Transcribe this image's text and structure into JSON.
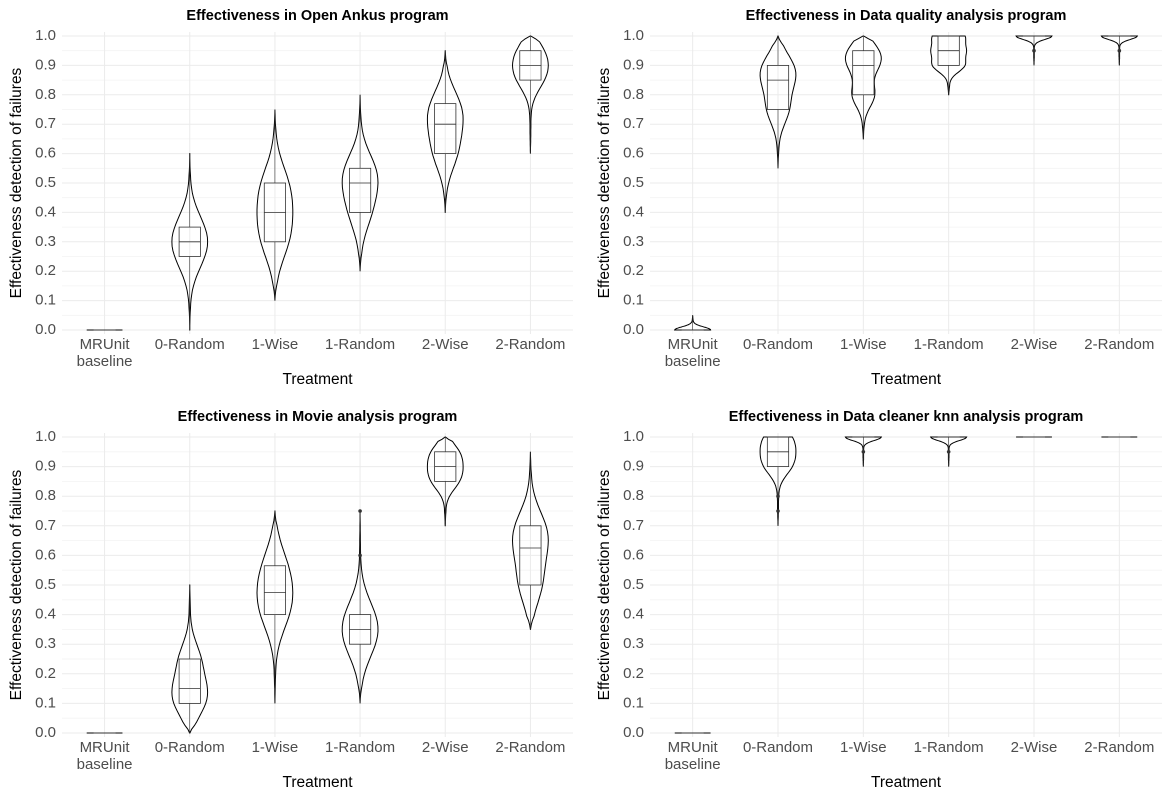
{
  "chart_data": [
    {
      "type": "violin",
      "title": "Effectiveness in Open Ankus program",
      "x_label": "Treatment",
      "y_label": "Effectiveness detection of failures",
      "categories": [
        "MRUnit baseline",
        "0-Random",
        "1-Wise",
        "1-Random",
        "2-Wise",
        "2-Random"
      ],
      "stats": [
        {
          "min": 0,
          "q1": 0,
          "median": 0,
          "q3": 0,
          "max": 0
        },
        {
          "min": 0,
          "q1": 0.25,
          "median": 0.3,
          "q3": 0.35,
          "max": 0.6
        },
        {
          "min": 0.1,
          "q1": 0.3,
          "median": 0.4,
          "q3": 0.5,
          "max": 0.75
        },
        {
          "min": 0.2,
          "q1": 0.4,
          "median": 0.5,
          "q3": 0.55,
          "max": 0.8
        },
        {
          "min": 0.4,
          "q1": 0.6,
          "median": 0.7,
          "q3": 0.77,
          "max": 0.95
        },
        {
          "min": 0.6,
          "q1": 0.85,
          "median": 0.9,
          "q3": 0.95,
          "max": 1.0
        }
      ],
      "ylim": [
        0,
        1
      ],
      "yticks": [
        {
          "value": 0,
          "label": "0.0"
        },
        0.1,
        0.2,
        0.3,
        0.4,
        0.5,
        0.6,
        0.7,
        0.8,
        0.9,
        {
          "value": 1,
          "label": "1.0"
        }
      ],
      "grid": true
    },
    {
      "type": "violin",
      "title": "Effectiveness in Data quality analysis program",
      "x_label": "Treatment",
      "y_label": "Effectiveness detection of failures",
      "categories": [
        "MRUnit baseline",
        "0-Random",
        "1-Wise",
        "1-Random",
        "2-Wise",
        "2-Random"
      ],
      "stats": [
        {
          "min": 0,
          "q1": 0,
          "median": 0,
          "q3": 0,
          "max": 0.05
        },
        {
          "min": 0.55,
          "q1": 0.75,
          "median": 0.85,
          "q3": 0.9,
          "max": 1.0
        },
        {
          "min": 0.65,
          "q1": 0.8,
          "median": 0.9,
          "q3": 0.95,
          "max": 1.0
        },
        {
          "min": 0.8,
          "q1": 0.9,
          "median": 0.95,
          "q3": 1.0,
          "max": 1.0
        },
        {
          "min": 0.9,
          "q1": 1.0,
          "median": 1.0,
          "q3": 1.0,
          "max": 1.0,
          "outliers": [
            0.95
          ]
        },
        {
          "min": 0.9,
          "q1": 1.0,
          "median": 1.0,
          "q3": 1.0,
          "max": 1.0,
          "outliers": [
            0.95
          ]
        }
      ],
      "ylim": [
        0,
        1
      ],
      "yticks": [
        {
          "value": 0,
          "label": "0.0"
        },
        0.1,
        0.2,
        0.3,
        0.4,
        0.5,
        0.6,
        0.7,
        0.8,
        0.9,
        {
          "value": 1,
          "label": "1.0"
        }
      ],
      "grid": true
    },
    {
      "type": "violin",
      "title": "Effectiveness in Movie analysis program",
      "x_label": "Treatment",
      "y_label": "Effectiveness detection of failures",
      "categories": [
        "MRUnit baseline",
        "0-Random",
        "1-Wise",
        "1-Random",
        "2-Wise",
        "2-Random"
      ],
      "stats": [
        {
          "min": 0,
          "q1": 0,
          "median": 0,
          "q3": 0,
          "max": 0
        },
        {
          "min": 0,
          "q1": 0.1,
          "median": 0.15,
          "q3": 0.25,
          "max": 0.5
        },
        {
          "min": 0.1,
          "q1": 0.4,
          "median": 0.475,
          "q3": 0.565,
          "max": 0.75
        },
        {
          "min": 0.1,
          "q1": 0.3,
          "median": 0.35,
          "q3": 0.4,
          "max": 0.75,
          "outliers": [
            0.6,
            0.75
          ]
        },
        {
          "min": 0.7,
          "q1": 0.85,
          "median": 0.9,
          "q3": 0.95,
          "max": 1.0
        },
        {
          "min": 0.35,
          "q1": 0.5,
          "median": 0.625,
          "q3": 0.7,
          "max": 0.95
        }
      ],
      "ylim": [
        0,
        1
      ],
      "yticks": [
        {
          "value": 0,
          "label": "0.0"
        },
        0.1,
        0.2,
        0.3,
        0.4,
        0.5,
        0.6,
        0.7,
        0.8,
        0.9,
        {
          "value": 1,
          "label": "1.0"
        }
      ],
      "grid": true
    },
    {
      "type": "violin",
      "title": "Effectiveness in Data cleaner knn analysis program",
      "x_label": "Treatment",
      "y_label": "Effectiveness detection of failures",
      "categories": [
        "MRUnit baseline",
        "0-Random",
        "1-Wise",
        "1-Random",
        "2-Wise",
        "2-Random"
      ],
      "stats": [
        {
          "min": 0,
          "q1": 0,
          "median": 0,
          "q3": 0,
          "max": 0
        },
        {
          "min": 0.7,
          "q1": 0.9,
          "median": 0.95,
          "q3": 1.0,
          "max": 1.0,
          "outliers": [
            0.8,
            0.75
          ]
        },
        {
          "min": 0.9,
          "q1": 1.0,
          "median": 1.0,
          "q3": 1.0,
          "max": 1.0,
          "outliers": [
            0.95
          ]
        },
        {
          "min": 0.9,
          "q1": 1.0,
          "median": 1.0,
          "q3": 1.0,
          "max": 1.0,
          "outliers": [
            0.95
          ]
        },
        {
          "min": 1.0,
          "q1": 1.0,
          "median": 1.0,
          "q3": 1.0,
          "max": 1.0
        },
        {
          "min": 1.0,
          "q1": 1.0,
          "median": 1.0,
          "q3": 1.0,
          "max": 1.0
        }
      ],
      "ylim": [
        0,
        1
      ],
      "yticks": [
        {
          "value": 0,
          "label": "0.0"
        },
        0.1,
        0.2,
        0.3,
        0.4,
        0.5,
        0.6,
        0.7,
        0.8,
        0.9,
        {
          "value": 1,
          "label": "1.0"
        }
      ],
      "grid": true
    }
  ]
}
